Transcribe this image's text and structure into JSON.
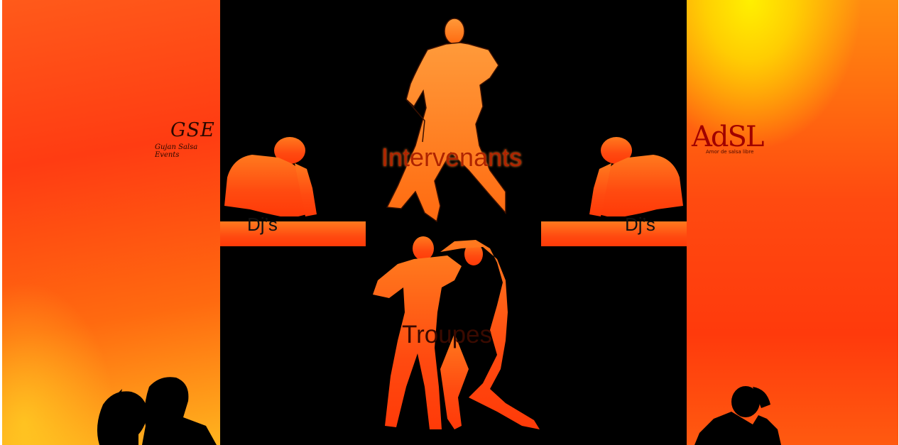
{
  "sections": {
    "intervenants_label": "Intervenants",
    "troupes_label": "Troupes",
    "djs_left_label": "Dj’s",
    "djs_right_label": "Dj’s"
  },
  "logos": {
    "gse_text": "GSE",
    "gse_subtitle": "Gujan Salsa Events",
    "adsl_text": "AdSL",
    "adsl_subtitle": "Amor de salsa libre"
  },
  "colors": {
    "background_center": "#000000",
    "accent_orange": "#ff4a12",
    "accent_yellow": "#ffe400",
    "label_red": "#b02400"
  },
  "icons": [
    "dj-silhouette",
    "dancing-couple-silhouette",
    "kissing-couple-silhouette",
    "seated-figure-silhouette"
  ]
}
